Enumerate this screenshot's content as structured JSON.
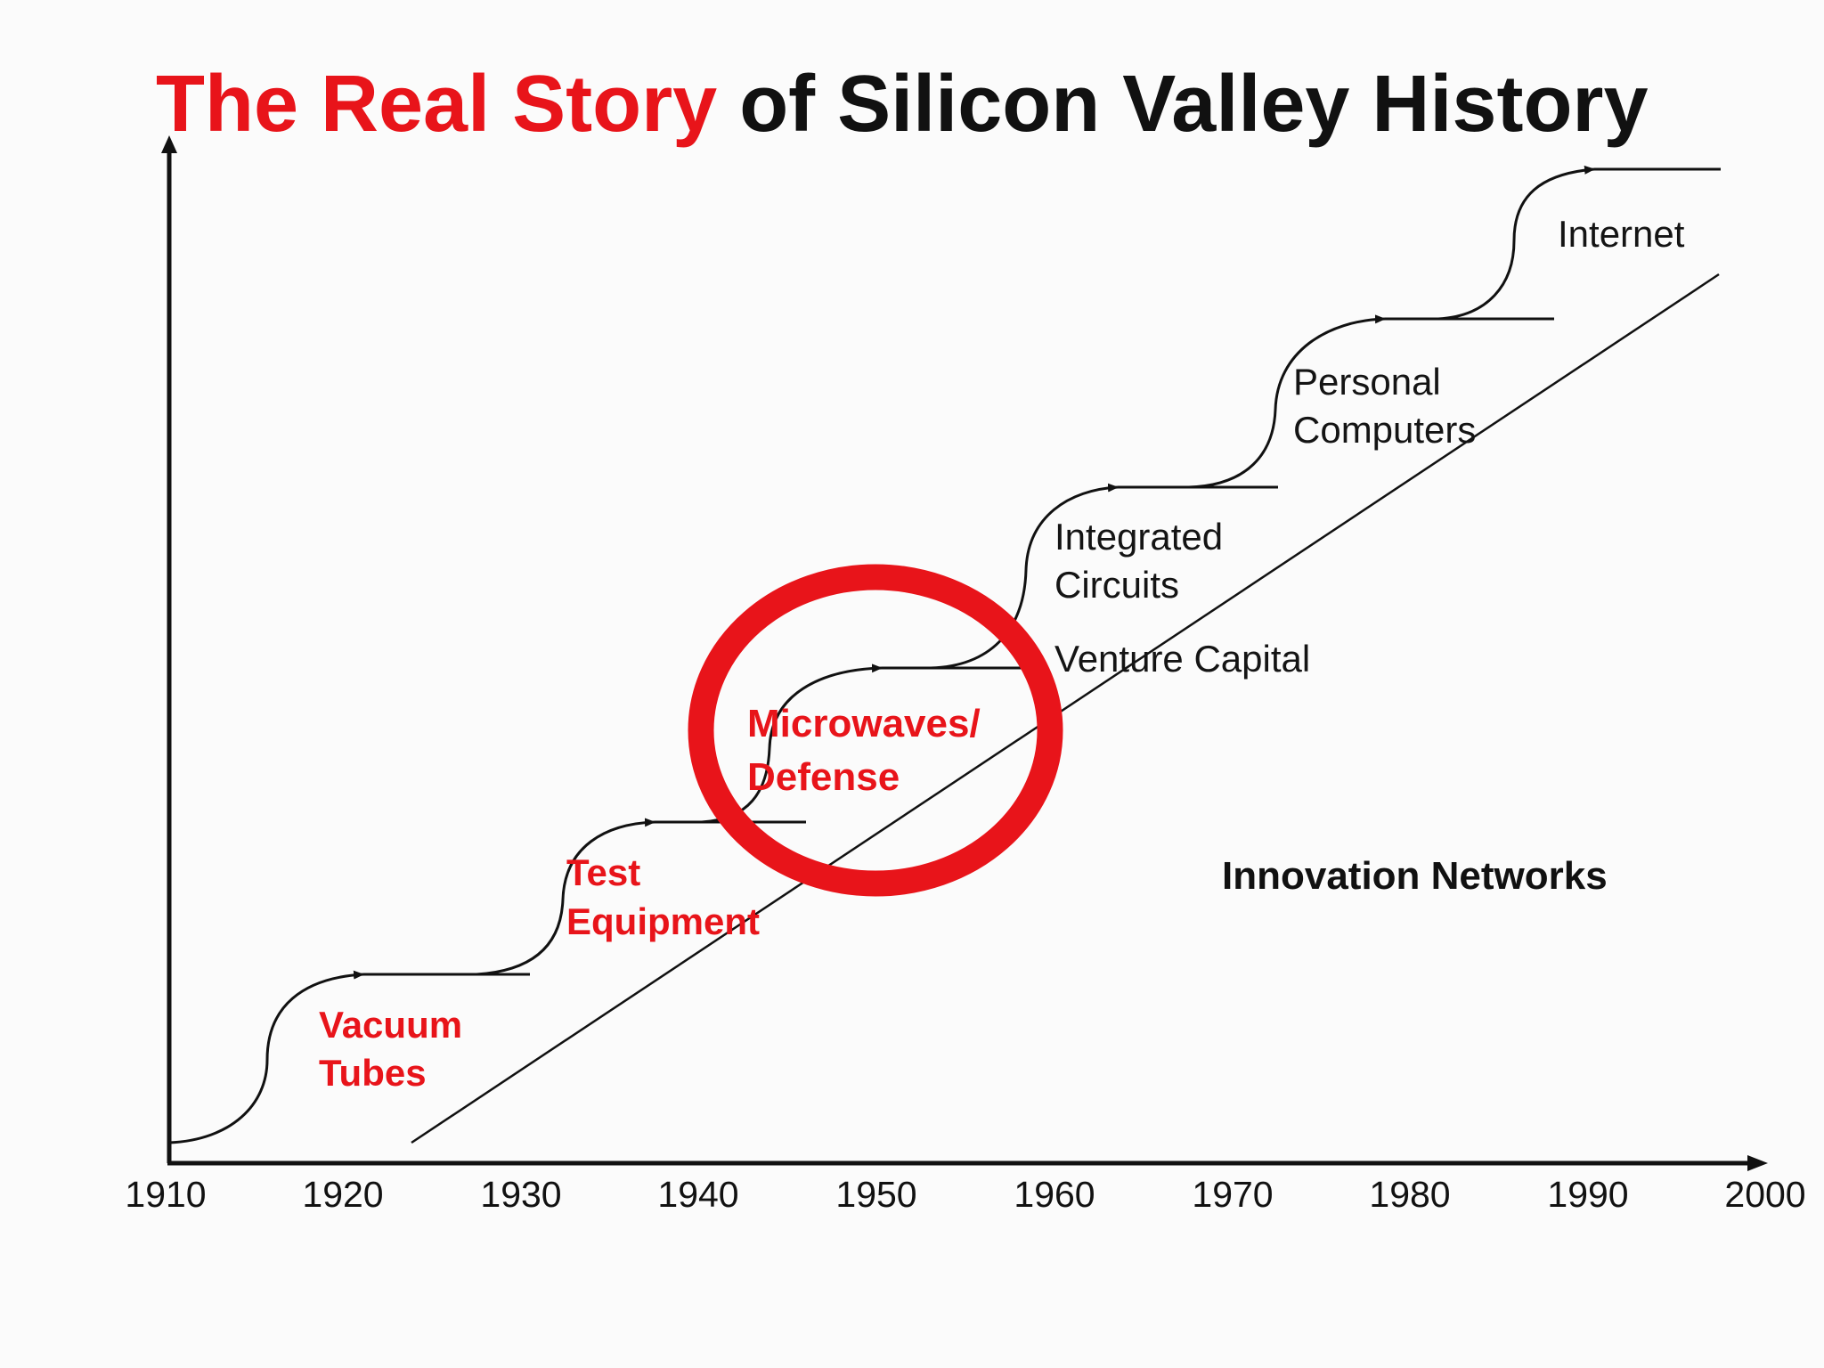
{
  "title": {
    "highlight": "The Real Story",
    "rest": " of Silicon Valley History"
  },
  "axis": {
    "ticks": [
      "1910",
      "1920",
      "1930",
      "1940",
      "1950",
      "1960",
      "1970",
      "1980",
      "1990",
      "2000"
    ]
  },
  "steps": [
    {
      "label_lines": [
        "Vacuum",
        "Tubes"
      ],
      "style": "red-bold"
    },
    {
      "label_lines": [
        "Test",
        "Equipment"
      ],
      "style": "red-bold"
    },
    {
      "label_lines": [
        "Microwaves/",
        "Defense"
      ],
      "style": "red-bold"
    },
    {
      "label_lines": [
        "Venture Capital"
      ],
      "style": "black"
    },
    {
      "label_lines": [
        "Integrated",
        "Circuits"
      ],
      "style": "black"
    },
    {
      "label_lines": [
        "Personal",
        "Computers"
      ],
      "style": "black"
    },
    {
      "label_lines": [
        "Internet"
      ],
      "style": "black"
    }
  ],
  "trend_label": "Innovation Networks",
  "colors": {
    "accent": "#e8141a",
    "text": "#111111",
    "background": "#fbfbfb"
  },
  "highlight_circle": "red ring around Microwaves/Defense era"
}
